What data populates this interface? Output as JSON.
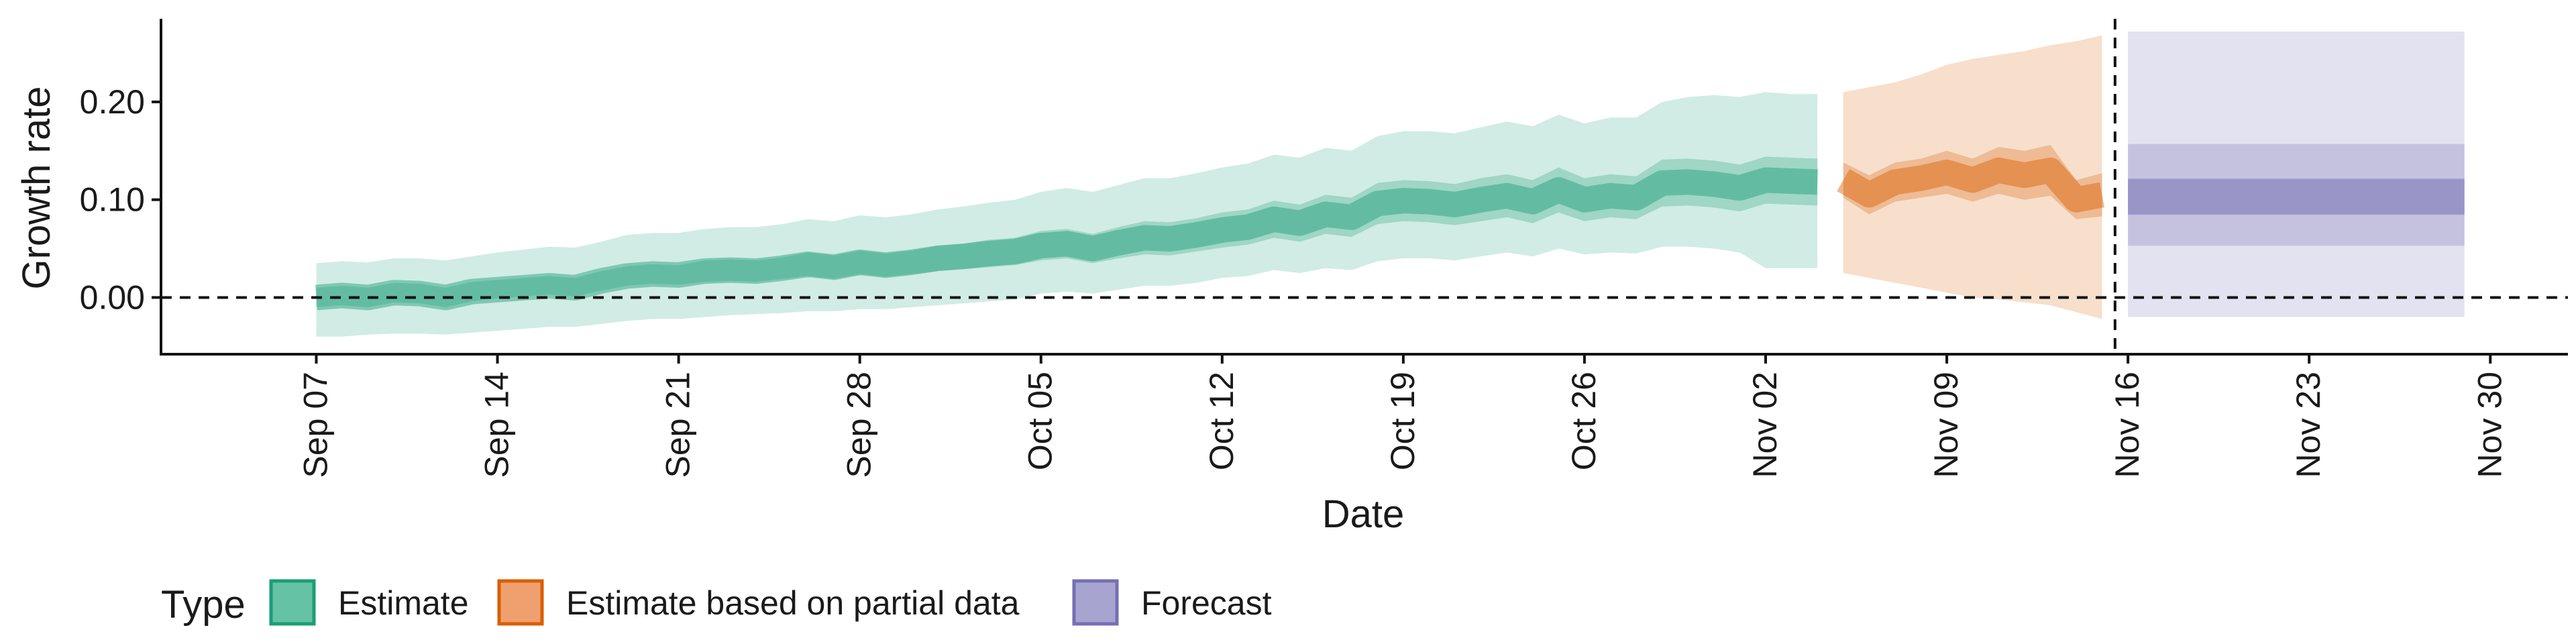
{
  "chart_data": {
    "type": "area",
    "xlabel": "Date",
    "ylabel": "Growth rate",
    "ylim": [
      -0.058,
      0.285
    ],
    "xlim": [
      "2020-09-01",
      "2020-12-03"
    ],
    "x_ticks": [
      "2020-09-07",
      "2020-09-14",
      "2020-09-21",
      "2020-09-28",
      "2020-10-05",
      "2020-10-12",
      "2020-10-19",
      "2020-10-26",
      "2020-11-02",
      "2020-11-09",
      "2020-11-16",
      "2020-11-23",
      "2020-11-30"
    ],
    "x_tick_labels": [
      "Sep 07",
      "Sep 14",
      "Sep 21",
      "Sep 28",
      "Oct 05",
      "Oct 12",
      "Oct 19",
      "Oct 26",
      "Nov 02",
      "Nov 09",
      "Nov 16",
      "Nov 23",
      "Nov 30"
    ],
    "y_ticks": [
      0.0,
      0.1,
      0.2
    ],
    "y_tick_labels": [
      "0.00",
      "0.10",
      "0.20"
    ],
    "hline_y": 0.0,
    "vline_x": "2020-11-15",
    "grid": false,
    "legend_position": "bottom",
    "legend": {
      "title": "Type",
      "items": [
        {
          "label": "Estimate",
          "fill": "#66c2a5",
          "stroke": "#1b9e77"
        },
        {
          "label": "Estimate based on partial data",
          "fill": "#f09f6e",
          "stroke": "#d95f02"
        },
        {
          "label": "Forecast",
          "fill": "#a7a4d0",
          "stroke": "#7570b3"
        }
      ]
    },
    "series": [
      {
        "name": "Estimate",
        "color": "#1b9e77",
        "x": [
          "2020-09-07",
          "2020-09-08",
          "2020-09-09",
          "2020-09-10",
          "2020-09-11",
          "2020-09-12",
          "2020-09-13",
          "2020-09-14",
          "2020-09-15",
          "2020-09-16",
          "2020-09-17",
          "2020-09-18",
          "2020-09-19",
          "2020-09-20",
          "2020-09-21",
          "2020-09-22",
          "2020-09-23",
          "2020-09-24",
          "2020-09-25",
          "2020-09-26",
          "2020-09-27",
          "2020-09-28",
          "2020-09-29",
          "2020-09-30",
          "2020-10-01",
          "2020-10-02",
          "2020-10-03",
          "2020-10-04",
          "2020-10-05",
          "2020-10-06",
          "2020-10-07",
          "2020-10-08",
          "2020-10-09",
          "2020-10-10",
          "2020-10-11",
          "2020-10-12",
          "2020-10-13",
          "2020-10-14",
          "2020-10-15",
          "2020-10-16",
          "2020-10-17",
          "2020-10-18",
          "2020-10-19",
          "2020-10-20",
          "2020-10-21",
          "2020-10-22",
          "2020-10-23",
          "2020-10-24",
          "2020-10-25",
          "2020-10-26",
          "2020-10-27",
          "2020-10-28",
          "2020-10-29",
          "2020-10-30",
          "2020-10-31",
          "2020-11-01",
          "2020-11-02",
          "2020-11-03",
          "2020-11-04"
        ],
        "median": [
          0.0,
          0.002,
          0.0,
          0.005,
          0.004,
          0.0,
          0.006,
          0.008,
          0.01,
          0.012,
          0.01,
          0.017,
          0.022,
          0.024,
          0.023,
          0.027,
          0.028,
          0.027,
          0.03,
          0.034,
          0.031,
          0.036,
          0.033,
          0.036,
          0.04,
          0.042,
          0.045,
          0.047,
          0.053,
          0.055,
          0.05,
          0.056,
          0.061,
          0.06,
          0.064,
          0.069,
          0.072,
          0.08,
          0.076,
          0.085,
          0.082,
          0.096,
          0.099,
          0.098,
          0.095,
          0.1,
          0.104,
          0.098,
          0.11,
          0.1,
          0.104,
          0.102,
          0.117,
          0.118,
          0.116,
          0.112,
          0.12,
          0.119,
          0.118
        ],
        "inner_lower": [
          -0.01,
          -0.008,
          -0.01,
          -0.005,
          -0.006,
          -0.01,
          -0.004,
          -0.001,
          0.001,
          0.003,
          0.001,
          0.007,
          0.012,
          0.014,
          0.013,
          0.016,
          0.017,
          0.016,
          0.019,
          0.022,
          0.019,
          0.024,
          0.021,
          0.024,
          0.027,
          0.029,
          0.031,
          0.033,
          0.038,
          0.04,
          0.035,
          0.04,
          0.044,
          0.043,
          0.047,
          0.051,
          0.054,
          0.061,
          0.057,
          0.065,
          0.062,
          0.075,
          0.078,
          0.077,
          0.074,
          0.078,
          0.082,
          0.076,
          0.087,
          0.078,
          0.082,
          0.08,
          0.093,
          0.094,
          0.092,
          0.088,
          0.096,
          0.095,
          0.094
        ],
        "inner_upper": [
          0.01,
          0.012,
          0.01,
          0.015,
          0.014,
          0.01,
          0.016,
          0.018,
          0.02,
          0.022,
          0.02,
          0.027,
          0.032,
          0.034,
          0.033,
          0.038,
          0.039,
          0.038,
          0.041,
          0.046,
          0.043,
          0.048,
          0.045,
          0.048,
          0.053,
          0.055,
          0.059,
          0.061,
          0.068,
          0.07,
          0.065,
          0.072,
          0.078,
          0.077,
          0.081,
          0.087,
          0.09,
          0.099,
          0.095,
          0.105,
          0.102,
          0.117,
          0.12,
          0.119,
          0.116,
          0.122,
          0.126,
          0.12,
          0.133,
          0.122,
          0.126,
          0.124,
          0.141,
          0.142,
          0.14,
          0.136,
          0.144,
          0.143,
          0.142
        ],
        "outer_lower": [
          -0.04,
          -0.04,
          -0.038,
          -0.037,
          -0.037,
          -0.038,
          -0.036,
          -0.034,
          -0.032,
          -0.03,
          -0.03,
          -0.027,
          -0.024,
          -0.022,
          -0.022,
          -0.02,
          -0.018,
          -0.017,
          -0.016,
          -0.014,
          -0.014,
          -0.012,
          -0.012,
          -0.01,
          -0.008,
          -0.006,
          -0.004,
          -0.002,
          0.004,
          0.006,
          0.004,
          0.008,
          0.012,
          0.012,
          0.015,
          0.02,
          0.022,
          0.028,
          0.025,
          0.03,
          0.028,
          0.037,
          0.04,
          0.04,
          0.038,
          0.042,
          0.046,
          0.042,
          0.05,
          0.044,
          0.046,
          0.045,
          0.052,
          0.052,
          0.05,
          0.046,
          0.03,
          0.03,
          0.03
        ],
        "outer_upper": [
          0.035,
          0.037,
          0.036,
          0.04,
          0.04,
          0.038,
          0.042,
          0.046,
          0.049,
          0.052,
          0.051,
          0.057,
          0.064,
          0.066,
          0.066,
          0.07,
          0.072,
          0.072,
          0.075,
          0.08,
          0.078,
          0.084,
          0.082,
          0.085,
          0.09,
          0.093,
          0.097,
          0.1,
          0.108,
          0.112,
          0.108,
          0.115,
          0.122,
          0.122,
          0.127,
          0.133,
          0.137,
          0.146,
          0.143,
          0.153,
          0.15,
          0.165,
          0.17,
          0.17,
          0.168,
          0.174,
          0.18,
          0.175,
          0.187,
          0.178,
          0.184,
          0.184,
          0.2,
          0.205,
          0.207,
          0.205,
          0.21,
          0.208,
          0.208
        ]
      },
      {
        "name": "Estimate based on partial data",
        "color": "#d95f02",
        "x": [
          "2020-11-05",
          "2020-11-06",
          "2020-11-07",
          "2020-11-08",
          "2020-11-09",
          "2020-11-10",
          "2020-11-11",
          "2020-11-12",
          "2020-11-13",
          "2020-11-14",
          "2020-11-15"
        ],
        "median": [
          0.12,
          0.105,
          0.118,
          0.122,
          0.128,
          0.12,
          0.13,
          0.125,
          0.13,
          0.1,
          0.105
        ],
        "inner_lower": [
          0.102,
          0.085,
          0.098,
          0.102,
          0.106,
          0.098,
          0.106,
          0.1,
          0.104,
          0.08,
          0.083
        ],
        "inner_upper": [
          0.138,
          0.125,
          0.138,
          0.142,
          0.15,
          0.142,
          0.154,
          0.15,
          0.156,
          0.12,
          0.127
        ],
        "outer_lower": [
          0.025,
          0.02,
          0.015,
          0.01,
          0.005,
          0.0,
          -0.002,
          -0.005,
          -0.008,
          -0.015,
          -0.022
        ],
        "outer_upper": [
          0.21,
          0.215,
          0.22,
          0.228,
          0.238,
          0.244,
          0.248,
          0.252,
          0.258,
          0.262,
          0.268
        ]
      },
      {
        "name": "Forecast",
        "color": "#7570b3",
        "x": [
          "2020-11-16",
          "2020-11-29"
        ],
        "median": [
          0.103,
          0.103
        ],
        "inner_lower": [
          0.085,
          0.085
        ],
        "inner_upper": [
          0.121,
          0.121
        ],
        "outer_lower": [
          -0.02,
          -0.02
        ],
        "outer_upper": [
          0.272,
          0.272
        ],
        "mid_lower": [
          0.053,
          0.053
        ],
        "mid_upper": [
          0.157,
          0.157
        ]
      }
    ]
  }
}
